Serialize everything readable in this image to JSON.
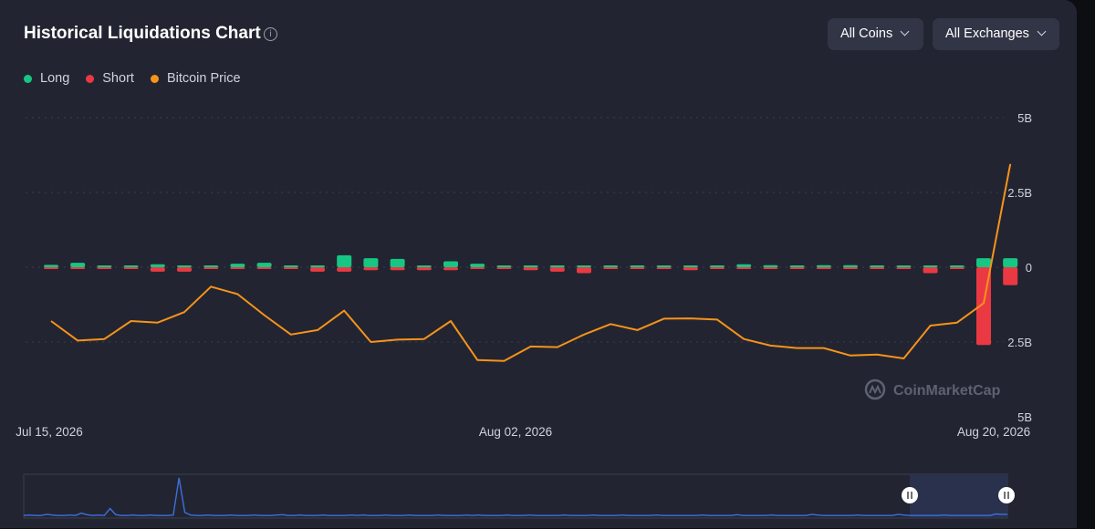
{
  "header": {
    "title": "Historical Liquidations Chart",
    "info_icon": "info-icon",
    "coin_filter": "All Coins",
    "exchange_filter": "All Exchanges"
  },
  "legend": [
    {
      "label": "Long",
      "color": "#16c784"
    },
    {
      "label": "Short",
      "color": "#ea3943"
    },
    {
      "label": "Bitcoin Price",
      "color": "#f7931a"
    }
  ],
  "watermark": "CoinMarketCap",
  "chart_data": {
    "type": "bar",
    "title": "Historical Liquidations Chart",
    "y_ticks": [
      "5B",
      "2.5B",
      "0",
      "2.5B",
      "5B"
    ],
    "ylim": [
      -5,
      5
    ],
    "y_unit": "billions USD",
    "x_tick_labels": [
      {
        "index": 0,
        "label": "Jul 15, 2026"
      },
      {
        "index": 18,
        "label": "Aug 02, 2026"
      },
      {
        "index": 36,
        "label": "Aug 20, 2026"
      }
    ],
    "series": [
      {
        "name": "Long",
        "color": "#16c784",
        "values": [
          0.08,
          0.15,
          0.03,
          0.03,
          0.1,
          0.05,
          0.06,
          0.12,
          0.15,
          0.03,
          0.04,
          0.4,
          0.3,
          0.28,
          0.05,
          0.2,
          0.12,
          0.03,
          0.06,
          0.05,
          0.06,
          0.04,
          0.04,
          0.04,
          0.02,
          0.03,
          0.1,
          0.07,
          0.05,
          0.07,
          0.07,
          0.04,
          0.02,
          0.06,
          0.06,
          0.3,
          0.3
        ]
      },
      {
        "name": "Short",
        "color": "#ea3943",
        "values": [
          -0.03,
          -0.05,
          -0.03,
          -0.03,
          -0.15,
          -0.15,
          -0.05,
          -0.03,
          -0.05,
          -0.03,
          -0.15,
          -0.15,
          -0.1,
          -0.1,
          -0.1,
          -0.1,
          -0.05,
          -0.05,
          -0.1,
          -0.15,
          -0.2,
          -0.05,
          -0.05,
          -0.03,
          -0.1,
          -0.05,
          -0.05,
          -0.05,
          -0.05,
          -0.05,
          -0.05,
          -0.03,
          -0.03,
          -0.2,
          -0.05,
          -2.6,
          -0.6
        ]
      },
      {
        "name": "Bitcoin Price",
        "color": "#f7931a",
        "values": [
          -1.8,
          -2.45,
          -2.4,
          -1.8,
          -1.85,
          -1.5,
          -0.65,
          -0.9,
          -1.6,
          -2.25,
          -2.1,
          -1.45,
          -2.5,
          -2.42,
          -2.4,
          -1.8,
          -3.1,
          -3.13,
          -2.65,
          -2.67,
          -2.25,
          -1.9,
          -2.1,
          -1.72,
          -1.71,
          -1.75,
          -2.4,
          -2.62,
          -2.7,
          -2.7,
          -2.95,
          -2.92,
          -3.05,
          -1.95,
          -1.85,
          -1.2,
          3.45
        ]
      }
    ]
  },
  "navigator": {
    "values": [
      0.02,
      0.03,
      0.02,
      0.02,
      0.05,
      0.03,
      0.02,
      0.02,
      0.03,
      0.02,
      0.08,
      0.04,
      0.02,
      0.03,
      0.02,
      0.2,
      0.04,
      0.02,
      0.02,
      0.03,
      0.02,
      0.02,
      0.03,
      0.02,
      0.02,
      0.02,
      0.03,
      1.0,
      0.1,
      0.03,
      0.02,
      0.02,
      0.03,
      0.02,
      0.02,
      0.02,
      0.03,
      0.02,
      0.02,
      0.02,
      0.03,
      0.02,
      0.02,
      0.02,
      0.03,
      0.04,
      0.02,
      0.02,
      0.03,
      0.02,
      0.02,
      0.02,
      0.03,
      0.02,
      0.02,
      0.02,
      0.02,
      0.03,
      0.02,
      0.03,
      0.02,
      0.02,
      0.02,
      0.03,
      0.02,
      0.02,
      0.02,
      0.03,
      0.02,
      0.02,
      0.02,
      0.02,
      0.03,
      0.02,
      0.02,
      0.02,
      0.02,
      0.03,
      0.02,
      0.03,
      0.02,
      0.02,
      0.02,
      0.02,
      0.03,
      0.02,
      0.02,
      0.02,
      0.03,
      0.02,
      0.02,
      0.02,
      0.02,
      0.02,
      0.03,
      0.02,
      0.02,
      0.02,
      0.02,
      0.03,
      0.02,
      0.02,
      0.02,
      0.02,
      0.03,
      0.02,
      0.02,
      0.02,
      0.02,
      0.02,
      0.03,
      0.02,
      0.02,
      0.02,
      0.02,
      0.02,
      0.02,
      0.02,
      0.03,
      0.02,
      0.02,
      0.02,
      0.02,
      0.02,
      0.04,
      0.02,
      0.02,
      0.02,
      0.02,
      0.02,
      0.03,
      0.02,
      0.02,
      0.02,
      0.02,
      0.02,
      0.02,
      0.05,
      0.03,
      0.02,
      0.02,
      0.02,
      0.02,
      0.02,
      0.02,
      0.03,
      0.02,
      0.02,
      0.02,
      0.02,
      0.02,
      0.02,
      0.05,
      0.03,
      0.02,
      0.02,
      0.02,
      0.02,
      0.02,
      0.02,
      0.03,
      0.02,
      0.02,
      0.02,
      0.02,
      0.02,
      0.02,
      0.02,
      0.02,
      0.06,
      0.05,
      0.05
    ],
    "selection_handle_icon": "drag-handle-icon"
  }
}
